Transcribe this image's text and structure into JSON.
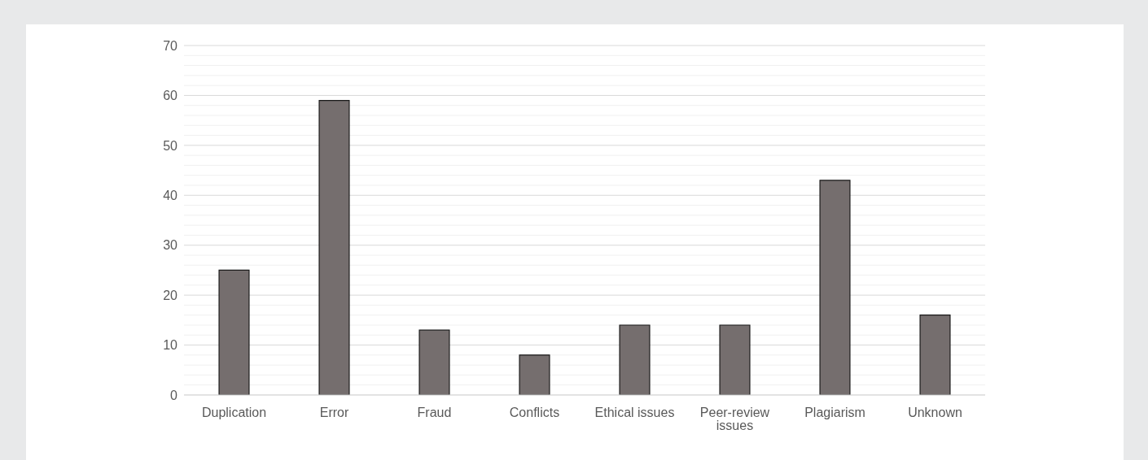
{
  "chart_data": {
    "type": "bar",
    "categories": [
      "Duplication",
      "Error",
      "Fraud",
      "Conflicts",
      "Ethical issues",
      "Peer-review issues",
      "Plagiarism",
      "Unknown"
    ],
    "values": [
      25,
      59,
      13,
      8,
      14,
      14,
      43,
      16
    ],
    "color": "#756e6e",
    "ylim": [
      0,
      70
    ],
    "yticks": [
      0,
      {
        "value": 2,
        "label": null
      },
      {
        "value": 4,
        "label": null
      },
      {
        "value": 6,
        "label": null
      },
      {
        "value": 8,
        "label": null
      },
      10,
      {
        "value": 12,
        "label": null
      },
      {
        "value": 14,
        "label": null
      },
      {
        "value": 16,
        "label": null
      },
      {
        "value": 18,
        "label": null
      },
      20,
      {
        "value": 22,
        "label": null
      },
      {
        "value": 24,
        "label": null
      },
      {
        "value": 26,
        "label": null
      },
      {
        "value": 28,
        "label": null
      },
      30,
      {
        "value": 32,
        "label": null
      },
      {
        "value": 34,
        "label": null
      },
      {
        "value": 36,
        "label": null
      },
      {
        "value": 38,
        "label": null
      },
      40,
      {
        "value": 42,
        "label": null
      },
      {
        "value": 44,
        "label": null
      },
      {
        "value": 46,
        "label": null
      },
      {
        "value": 48,
        "label": null
      },
      50,
      {
        "value": 52,
        "label": null
      },
      {
        "value": 54,
        "label": null
      },
      {
        "value": 56,
        "label": null
      },
      {
        "value": 58,
        "label": null
      },
      60,
      {
        "value": 62,
        "label": null
      },
      {
        "value": 64,
        "label": null
      },
      {
        "value": 66,
        "label": null
      },
      {
        "value": 68,
        "label": null
      },
      70
    ],
    "grid": "y"
  }
}
